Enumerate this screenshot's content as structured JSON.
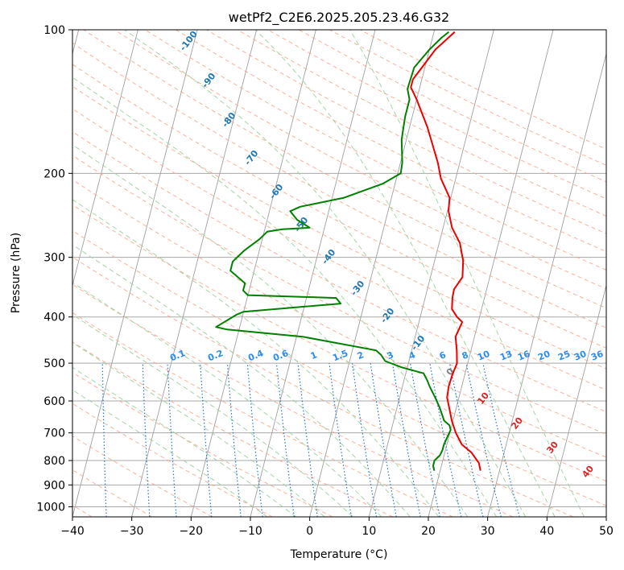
{
  "chart_data": {
    "type": "line",
    "title": "wetPf2_C2E6.2025.205.23.46.G32",
    "xlabel": "Temperature (°C)",
    "ylabel": "Pressure (hPa)",
    "xlim": [
      -40,
      50
    ],
    "ylim": [
      1050,
      100
    ],
    "y_scale": "log",
    "grid": true,
    "x_ticks": [
      "−40",
      "−30",
      "−20",
      "−10",
      "0",
      "10",
      "20",
      "30",
      "40",
      "50"
    ],
    "y_ticks": [
      "100",
      "200",
      "300",
      "400",
      "500",
      "600",
      "700",
      "800",
      "900",
      "1000"
    ],
    "series": [
      {
        "color": "#ee0000",
        "points": [
          [
            26.8,
            840
          ],
          [
            26.2,
            810
          ],
          [
            24.5,
            770
          ],
          [
            22.5,
            740
          ],
          [
            21,
            700
          ],
          [
            19.8,
            660
          ],
          [
            18.8,
            620
          ],
          [
            18,
            590
          ],
          [
            17.8,
            560
          ],
          [
            17.9,
            530
          ],
          [
            18.2,
            500
          ],
          [
            17.6,
            470
          ],
          [
            16.8,
            440
          ],
          [
            17.3,
            410
          ],
          [
            16.2,
            400
          ],
          [
            15,
            385
          ],
          [
            14.6,
            365
          ],
          [
            14.5,
            350
          ],
          [
            15.4,
            330
          ],
          [
            14.8,
            305
          ],
          [
            13.5,
            280
          ],
          [
            11.5,
            260
          ],
          [
            10.2,
            240
          ],
          [
            9.8,
            225
          ],
          [
            7.5,
            205
          ],
          [
            6.3,
            190
          ],
          [
            3,
            160
          ],
          [
            0,
            140
          ],
          [
            -1.5,
            132
          ],
          [
            -1.5,
            127
          ],
          [
            -0.5,
            120
          ],
          [
            1,
            110
          ],
          [
            3.5,
            101
          ]
        ]
      },
      {
        "color": "#008000",
        "points": [
          [
            19,
            840
          ],
          [
            18.6,
            820
          ],
          [
            18.6,
            800
          ],
          [
            19.3,
            780
          ],
          [
            19.5,
            760
          ],
          [
            19.5,
            740
          ],
          [
            19.8,
            710
          ],
          [
            20,
            690
          ],
          [
            19.6,
            675
          ],
          [
            18.5,
            660
          ],
          [
            17.2,
            620
          ],
          [
            16,
            590
          ],
          [
            14.6,
            560
          ],
          [
            14,
            545
          ],
          [
            13,
            525
          ],
          [
            9,
            510
          ],
          [
            6,
            495
          ],
          [
            5,
            480
          ],
          [
            4,
            470
          ],
          [
            -9,
            440
          ],
          [
            -22,
            425
          ],
          [
            -24,
            420
          ],
          [
            -21,
            395
          ],
          [
            -20,
            390
          ],
          [
            -4,
            375
          ],
          [
            -5,
            365
          ],
          [
            -20,
            360
          ],
          [
            -21,
            352
          ],
          [
            -21,
            340
          ],
          [
            -24,
            320
          ],
          [
            -24,
            306
          ],
          [
            -22.5,
            290
          ],
          [
            -20.5,
            275
          ],
          [
            -19.5,
            265
          ],
          [
            -17,
            262
          ],
          [
            -12.5,
            260
          ],
          [
            -15,
            250
          ],
          [
            -16.5,
            240
          ],
          [
            -15,
            235
          ],
          [
            -8,
            225
          ],
          [
            -2,
            210
          ],
          [
            0.5,
            200
          ],
          [
            0.3,
            190
          ],
          [
            -0.8,
            170
          ],
          [
            -1.2,
            152
          ],
          [
            -1.2,
            140
          ],
          [
            -2,
            133
          ],
          [
            -1.8,
            120
          ],
          [
            0,
            110
          ],
          [
            1.5,
            104
          ],
          [
            2.5,
            101
          ]
        ]
      }
    ],
    "dry_adiabat_labels": [
      "-100",
      "-90",
      "-80",
      "-70",
      "-60",
      "-50",
      "-40",
      "-30",
      "-20",
      "-10",
      "0",
      "10",
      "20",
      "30",
      "40"
    ],
    "mixing_ratio_labels": [
      "0.1",
      "0.2",
      "0.4",
      "0.6",
      "1",
      "1.5",
      "2",
      "3",
      "4",
      "6",
      "8",
      "10",
      "13",
      "16",
      "20",
      "25",
      "30",
      "36"
    ],
    "mixing_ratio_values": [
      0.1,
      0.2,
      0.4,
      0.6,
      1,
      1.5,
      2,
      3,
      4,
      6,
      8,
      10,
      13,
      16,
      20,
      25,
      30,
      36
    ],
    "colors": {
      "isotherm": "#a0a0a0",
      "isobar": "#a8a8a8",
      "dry_adiabat": "#f4a58a",
      "moist_adiabat": "#9ccf9c",
      "mixing_ratio": "#1f77d4",
      "dry_label": "#1f77b4",
      "moist_label_warm": "#d62728",
      "moist_label_zero": "#7f7f7f",
      "mixing_label": "#2b8cf0",
      "cape_curve": "#d2b48c"
    }
  }
}
